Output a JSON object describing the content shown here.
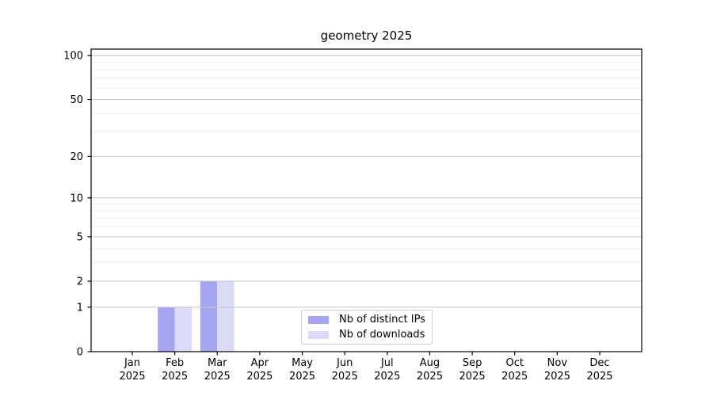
{
  "chart_data": {
    "type": "bar",
    "title": "geometry 2025",
    "categories": [
      "Jan",
      "Feb",
      "Mar",
      "Apr",
      "May",
      "Jun",
      "Jul",
      "Aug",
      "Sep",
      "Oct",
      "Nov",
      "Dec"
    ],
    "category_year": "2025",
    "series": [
      {
        "name": "Nb of distinct IPs",
        "color": "#a5a5f2",
        "values": [
          0,
          1,
          2,
          0,
          0,
          0,
          0,
          0,
          0,
          0,
          0,
          0
        ]
      },
      {
        "name": "Nb of downloads",
        "color": "#dbdbf8",
        "values": [
          0,
          1,
          2,
          0,
          0,
          0,
          0,
          0,
          0,
          0,
          0,
          0
        ]
      }
    ],
    "xlabel": "",
    "ylabel": "",
    "yscale": "log10(1+y)",
    "ylim": [
      0,
      110
    ],
    "yticks_major": [
      0,
      1,
      2,
      5,
      10,
      20,
      50,
      100
    ],
    "yticks_minor": [
      3,
      4,
      6,
      7,
      8,
      9,
      30,
      40,
      60,
      70,
      80,
      90
    ],
    "grid": "major+minor, drawn above bars",
    "legend_position": "lower center"
  },
  "colors": {
    "background": "#ffffff",
    "axis": "#000000",
    "tick_text": "#000000",
    "grid_major": "#c6c6c6",
    "grid_minor": "#ececec",
    "legend_border": "#cccccc"
  }
}
